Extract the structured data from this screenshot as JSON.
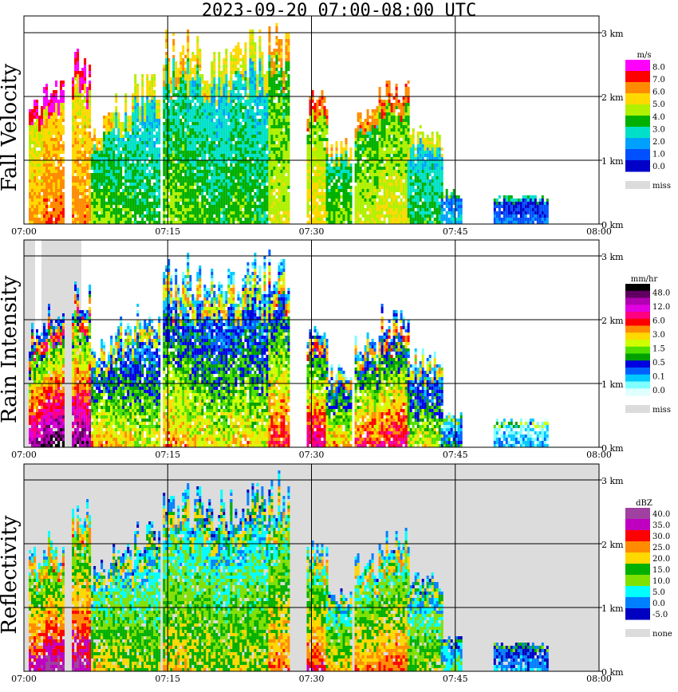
{
  "title": "2023-09-20   07:00-08:00 UTC",
  "x_ticks": [
    "07:00",
    "07:15",
    "07:30",
    "07:45",
    "08:00"
  ],
  "y_ticks": [
    "0 km",
    "1 km",
    "2 km",
    "3 km"
  ],
  "chart_data": [
    {
      "type": "heatmap",
      "ylabel": "Fall Velocity",
      "x_range": [
        "07:00",
        "08:00"
      ],
      "y_range_km": [
        0,
        3.2
      ],
      "grid": true,
      "colorbar": {
        "unit": "m/s",
        "labels": [
          "8.0",
          "7.0",
          "6.0",
          "5.0",
          "4.0",
          "3.0",
          "2.0",
          "1.0",
          "0.0"
        ],
        "colors": [
          "#ff00ff",
          "#ff0000",
          "#ff8c00",
          "#ffd800",
          "#b0f000",
          "#00b000",
          "#00e0c8",
          "#00a0ff",
          "#0050ff",
          "#0000c8"
        ],
        "miss_label": "miss",
        "miss_color": "#dcdcdc"
      }
    },
    {
      "type": "heatmap",
      "ylabel": "Rain Intensity",
      "x_range": [
        "07:00",
        "08:00"
      ],
      "y_range_km": [
        0,
        3.2
      ],
      "grid": true,
      "colorbar": {
        "unit": "mm/hr",
        "labels": [
          "48.0",
          "12.0",
          "6.0",
          "3.0",
          "1.5",
          "0.5",
          "0.1",
          "0.0"
        ],
        "colors": [
          "#000000",
          "#600060",
          "#b000b0",
          "#e000e0",
          "#ff0080",
          "#ff0000",
          "#ff8c00",
          "#ffd800",
          "#d0ff00",
          "#50e000",
          "#00a000",
          "#0000e0",
          "#0060ff",
          "#00c8ff",
          "#80ffff",
          "#e0ffff"
        ],
        "miss_label": "miss",
        "miss_color": "#dcdcdc"
      }
    },
    {
      "type": "heatmap",
      "ylabel": "Reflectivity",
      "x_range": [
        "07:00",
        "08:00"
      ],
      "y_range_km": [
        0,
        3.2
      ],
      "grid": true,
      "colorbar": {
        "unit": "dBZ",
        "labels": [
          "40.0",
          "35.0",
          "30.0",
          "25.0",
          "20.0",
          "15.0",
          "10.0",
          "5.0",
          "0.0",
          "-5.0"
        ],
        "colors": [
          "#a040a0",
          "#c000c0",
          "#ff0000",
          "#ff8c00",
          "#ffd800",
          "#00b000",
          "#80e000",
          "#00ffff",
          "#0080ff",
          "#0000c0"
        ],
        "miss_label": "none",
        "miss_color": "#dcdcdc"
      }
    }
  ]
}
